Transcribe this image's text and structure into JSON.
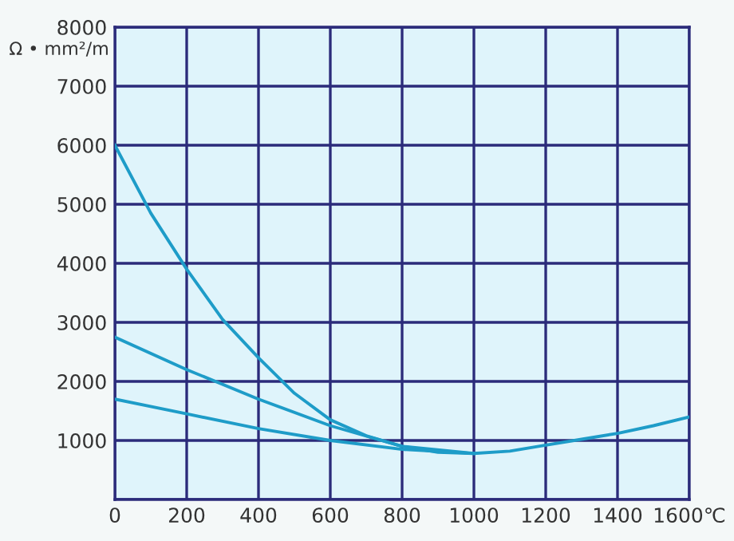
{
  "chart_data": {
    "type": "line",
    "ylabel": "Ω • mm²/m",
    "series": [
      {
        "color": "#1e9cc8",
        "x": [
          0,
          100,
          200,
          300,
          400,
          500,
          600,
          700,
          800,
          900,
          1000,
          1100,
          1200,
          1300,
          1400,
          1500,
          1600
        ],
        "values": [
          6000,
          4850,
          3900,
          3050,
          2400,
          1800,
          1350,
          1080,
          900,
          800,
          780,
          820,
          920,
          1020,
          1120,
          1250,
          1400
        ]
      },
      {
        "color": "#1e9cc8",
        "x": [
          0,
          200,
          400,
          600,
          800,
          1000
        ],
        "values": [
          2750,
          2200,
          1700,
          1250,
          900,
          780
        ]
      },
      {
        "color": "#1e9cc8",
        "x": [
          0,
          200,
          400,
          600,
          800,
          1000
        ],
        "values": [
          1700,
          1450,
          1200,
          1000,
          850,
          780
        ]
      }
    ],
    "xlim": [
      0,
      1600
    ],
    "ylim": [
      0,
      8000
    ],
    "xticks": [
      0,
      200,
      400,
      600,
      800,
      1000,
      1200,
      1400,
      {
        "value": 1600,
        "label": "1600℃"
      }
    ],
    "yticks": [
      {
        "value": 0,
        "label": null
      },
      1000,
      2000,
      3000,
      4000,
      5000,
      6000,
      7000,
      8000
    ],
    "grid": true,
    "marker": "none",
    "line_style": "solid"
  }
}
